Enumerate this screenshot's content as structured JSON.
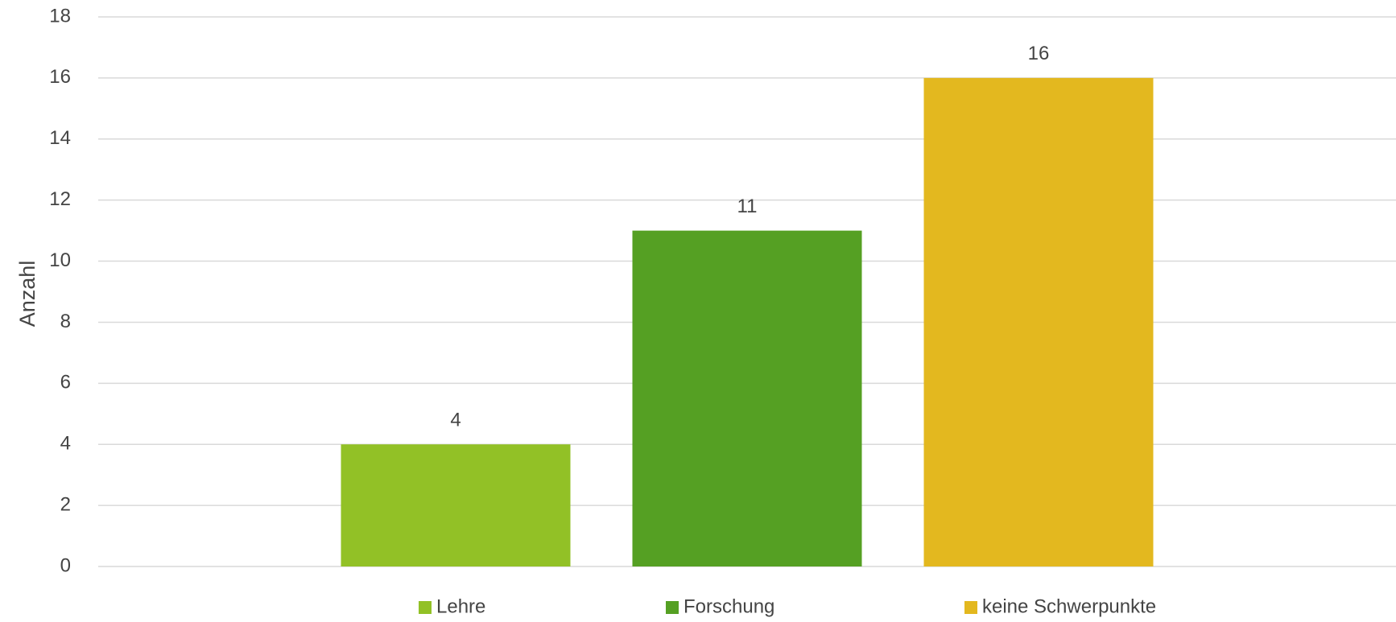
{
  "chart_data": {
    "type": "bar",
    "y_label": "Anzahl",
    "categories": [
      null
    ],
    "series": [
      {
        "name": "Lehre",
        "color": "#92c126",
        "values": [
          4
        ]
      },
      {
        "name": "Forschung",
        "color": "#55a023",
        "values": [
          11
        ]
      },
      {
        "name": "keine Schwerpunkte",
        "color": "#e3b81f",
        "values": [
          16
        ]
      }
    ],
    "ylim": [
      0,
      18
    ],
    "yticks": [
      0,
      2,
      4,
      6,
      8,
      10,
      12,
      14,
      16,
      18
    ],
    "grid": true,
    "legend": "bottom"
  }
}
